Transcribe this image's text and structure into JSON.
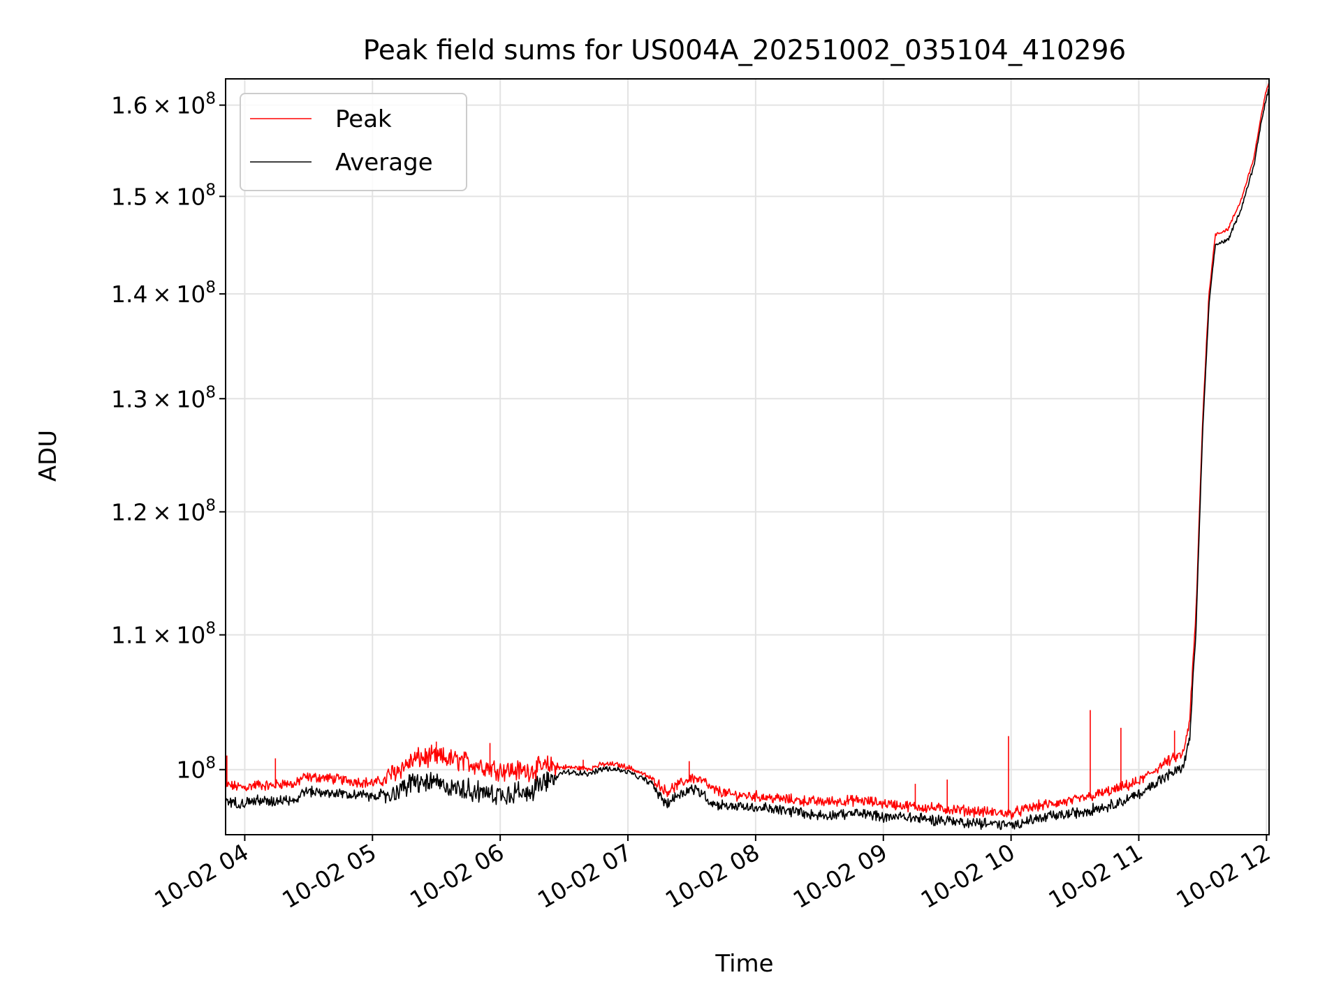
{
  "chart_data": {
    "type": "line",
    "title": "Peak field sums for US004A_20251002_035104_410296",
    "xlabel": "Time",
    "ylabel": "ADU",
    "y_scale": "log",
    "xlim": [
      3.85,
      12.02
    ],
    "ylim": [
      95500000,
      163000000
    ],
    "grid": true,
    "legend_position": "upper-left",
    "x_ticks": [
      {
        "value": 4,
        "label": "10-02 04"
      },
      {
        "value": 5,
        "label": "10-02 05"
      },
      {
        "value": 6,
        "label": "10-02 06"
      },
      {
        "value": 7,
        "label": "10-02 07"
      },
      {
        "value": 8,
        "label": "10-02 08"
      },
      {
        "value": 9,
        "label": "10-02 09"
      },
      {
        "value": 10,
        "label": "10-02 10"
      },
      {
        "value": 11,
        "label": "10-02 11"
      },
      {
        "value": 12,
        "label": "10-02 12"
      }
    ],
    "y_ticks": [
      {
        "value": 100000000,
        "mant": "",
        "exp": "8"
      },
      {
        "value": 110000000,
        "mant": "1.1",
        "exp": "8"
      },
      {
        "value": 120000000,
        "mant": "1.2",
        "exp": "8"
      },
      {
        "value": 130000000,
        "mant": "1.3",
        "exp": "8"
      },
      {
        "value": 140000000,
        "mant": "1.4",
        "exp": "8"
      },
      {
        "value": 150000000,
        "mant": "1.5",
        "exp": "8"
      },
      {
        "value": 160000000,
        "mant": "1.6",
        "exp": "8"
      }
    ],
    "series": [
      {
        "name": "Peak",
        "color": "#ff0000",
        "x": [
          3.85,
          3.9,
          4.0,
          4.1,
          4.2,
          4.3,
          4.4,
          4.45,
          4.6,
          4.8,
          5.0,
          5.1,
          5.2,
          5.35,
          5.5,
          5.7,
          5.9,
          6.0,
          6.2,
          6.35,
          6.5,
          6.7,
          6.8,
          6.9,
          7.0,
          7.1,
          7.2,
          7.3,
          7.4,
          7.5,
          7.6,
          7.65,
          7.8,
          8.0,
          8.2,
          8.5,
          8.8,
          9.0,
          9.2,
          9.5,
          9.8,
          10.0,
          10.2,
          10.5,
          10.8,
          11.0,
          11.2,
          11.35,
          11.4,
          11.45,
          11.5,
          11.55,
          11.58,
          11.6,
          11.65,
          11.7,
          11.8,
          11.9,
          11.95,
          12.0,
          12.02
        ],
        "y": [
          98800000,
          98700000,
          98600000,
          98800000,
          98700000,
          98900000,
          98800000,
          99300000,
          99300000,
          99100000,
          98900000,
          99100000,
          99700000,
          100500000,
          100600000,
          100300000,
          99900000,
          99700000,
          99600000,
          99900000,
          100100000,
          100000000,
          100300000,
          100300000,
          100100000,
          99700000,
          99200000,
          98300000,
          98800000,
          99300000,
          99000000,
          98500000,
          98100000,
          98000000,
          97800000,
          97600000,
          97700000,
          97500000,
          97300000,
          97100000,
          96900000,
          96800000,
          97300000,
          97700000,
          98400000,
          99000000,
          100300000,
          101000000,
          103500000,
          112000000,
          128000000,
          140000000,
          143500000,
          146000000,
          146200000,
          146500000,
          149500000,
          154000000,
          158000000,
          161700000,
          162600000
        ]
      },
      {
        "name": "Average",
        "color": "#000000",
        "x": [
          3.85,
          3.9,
          4.0,
          4.1,
          4.2,
          4.3,
          4.4,
          4.45,
          4.6,
          4.8,
          5.0,
          5.1,
          5.2,
          5.35,
          5.5,
          5.7,
          5.9,
          6.0,
          6.2,
          6.35,
          6.5,
          6.7,
          6.8,
          6.9,
          7.0,
          7.1,
          7.2,
          7.3,
          7.4,
          7.5,
          7.6,
          7.65,
          7.8,
          8.0,
          8.2,
          8.5,
          8.8,
          9.0,
          9.2,
          9.5,
          9.8,
          10.0,
          10.2,
          10.5,
          10.8,
          11.0,
          11.2,
          11.35,
          11.4,
          11.45,
          11.5,
          11.55,
          11.58,
          11.6,
          11.65,
          11.7,
          11.8,
          11.9,
          11.95,
          12.0,
          12.02
        ],
        "y": [
          98000000,
          97900000,
          97800000,
          98000000,
          97900000,
          98100000,
          98000000,
          98600000,
          98600000,
          98400000,
          98300000,
          98400000,
          98900000,
          99400000,
          99300000,
          99000000,
          98600000,
          98600000,
          98700000,
          99300000,
          99900000,
          99800000,
          100100000,
          100100000,
          99900000,
          99500000,
          99000000,
          97700000,
          98400000,
          98800000,
          98400000,
          97800000,
          97600000,
          97500000,
          97300000,
          97000000,
          97100000,
          96900000,
          96800000,
          96600000,
          96400000,
          96300000,
          96700000,
          97100000,
          97700000,
          98400000,
          99600000,
          100400000,
          102500000,
          111000000,
          127000000,
          139000000,
          142700000,
          145000000,
          145300000,
          145500000,
          148700000,
          153300000,
          157500000,
          161000000,
          161900000
        ]
      }
    ],
    "spikes": [
      {
        "series": "Peak",
        "x": 3.86,
        "y": 101000000
      },
      {
        "series": "Peak",
        "x": 4.24,
        "y": 100800000
      },
      {
        "series": "Peak",
        "x": 5.5,
        "y": 102000000
      },
      {
        "series": "Peak",
        "x": 5.92,
        "y": 101900000
      },
      {
        "series": "Peak",
        "x": 6.65,
        "y": 100700000
      },
      {
        "series": "Peak",
        "x": 7.48,
        "y": 100600000
      },
      {
        "series": "Peak",
        "x": 9.25,
        "y": 99000000
      },
      {
        "series": "Peak",
        "x": 9.5,
        "y": 99300000
      },
      {
        "series": "Peak",
        "x": 9.98,
        "y": 102400000
      },
      {
        "series": "Peak",
        "x": 10.62,
        "y": 104300000
      },
      {
        "series": "Peak",
        "x": 10.86,
        "y": 103000000
      },
      {
        "series": "Peak",
        "x": 11.28,
        "y": 102800000
      }
    ]
  }
}
